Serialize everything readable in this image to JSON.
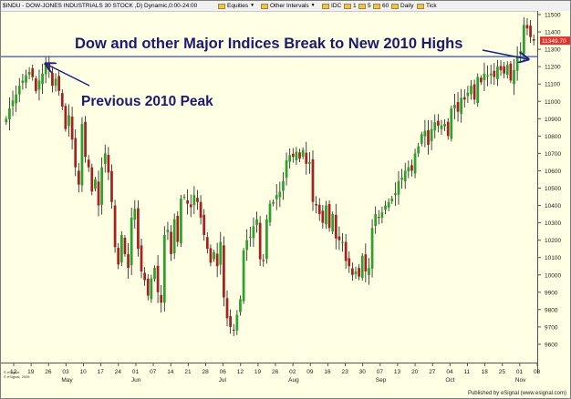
{
  "toolbar": {
    "symbol": "$INDU - DOW-JONES INDUSTRIALS 30 STOCK ,D) Dynamic,0:00-24:00",
    "equities": "Equities",
    "other_intervals": "Other Intervals",
    "idc": "IDC",
    "i1": "1",
    "i5": "5",
    "i60": "60",
    "daily": "Daily",
    "tick": "Tick"
  },
  "annotations": {
    "headline": "Dow and other Major Indices Break to New 2010 Highs",
    "peak": "Previous 2010 Peak",
    "price_tag": "11349.70"
  },
  "footer": {
    "left_line1": "© eSignal",
    "left_line2": "© eSignal, 2009",
    "right": "Published by eSignal (www.esignal.com)"
  },
  "colors": {
    "up": "#2ea02e",
    "down": "#a42222",
    "line": "#3a4ec0",
    "price_tag": "#e0332c"
  },
  "chart_data": {
    "type": "candlestick",
    "ylim": [
      9500,
      11500
    ],
    "y_ticks": [
      9600,
      9700,
      9800,
      9900,
      10000,
      10100,
      10200,
      10300,
      10400,
      10500,
      10600,
      10700,
      10800,
      10900,
      11000,
      11100,
      11200,
      11300,
      11400,
      11500
    ],
    "x_ticks": [
      "12",
      "19",
      "26",
      "03",
      "10",
      "17",
      "24",
      "01",
      "07",
      "14",
      "21",
      "28",
      "06",
      "12",
      "19",
      "26",
      "02",
      "09",
      "16",
      "23",
      "30",
      "07",
      "13",
      "20",
      "27",
      "04",
      "11",
      "18",
      "25",
      "01",
      "08"
    ],
    "months": [
      "May",
      "Jun",
      "Jul",
      "Aug",
      "Sep",
      "Oct",
      "Nov"
    ],
    "reference_line": 11258,
    "last_price": 11349.7,
    "closes": [
      10900,
      10960,
      11005,
      11040,
      11090,
      11120,
      11150,
      11170,
      11140,
      11060,
      11120,
      11160,
      11205,
      11180,
      11090,
      11130,
      11060,
      10970,
      10840,
      10920,
      10780,
      10620,
      10520,
      10870,
      10680,
      10620,
      10480,
      10550,
      10400,
      10620,
      10700,
      10590,
      10420,
      10160,
      10060,
      10230,
      10120,
      10040,
      10330,
      10380,
      10150,
      10020,
      9970,
      9880,
      9980,
      10040,
      9900,
      9840,
      10230,
      10260,
      10120,
      10320,
      10190,
      10440,
      10450,
      10410,
      10390,
      10460,
      10420,
      10330,
      10230,
      10150,
      10070,
      10130,
      10050,
      10190,
      9870,
      9750,
      9700,
      9680,
      9770,
      9860,
      10140,
      10200,
      10220,
      10280,
      10320,
      10090,
      10080,
      10320,
      10410,
      10420,
      10460,
      10480,
      10540,
      10660,
      10690,
      10680,
      10710,
      10670,
      10720,
      10640,
      10650,
      10420,
      10400,
      10350,
      10300,
      10400,
      10270,
      10350,
      10210,
      10200,
      10190,
      10080,
      10050,
      10000,
      10020,
      9990,
      10110,
      10020,
      10040,
      10270,
      10350,
      10330,
      10360,
      10400,
      10420,
      10440,
      10470,
      10540,
      10560,
      10600,
      10620,
      10600,
      10700,
      10740,
      10810,
      10830,
      10750,
      10840,
      10880,
      10860,
      10860,
      10870,
      10800,
      10960,
      10980,
      10940,
      11020,
      11010,
      11050,
      11090,
      11010,
      11140,
      11110,
      11160,
      11150,
      11160,
      11140,
      11200,
      11180,
      11160,
      11210,
      11120,
      11180,
      11260,
      11290,
      11440,
      11420,
      11370,
      11349.7
    ],
    "peak_index": 11
  }
}
